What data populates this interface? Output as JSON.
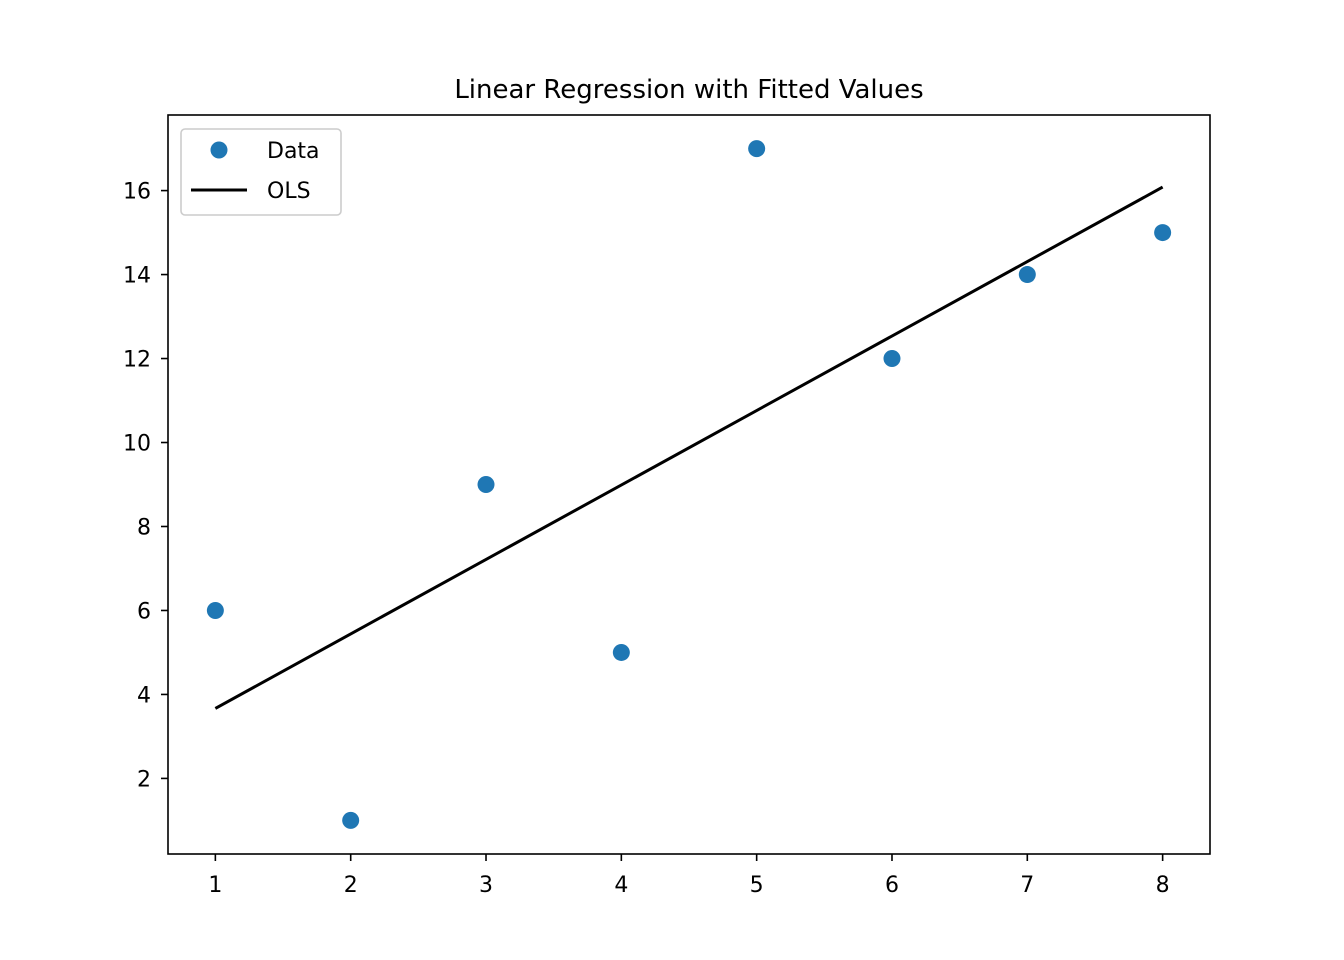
{
  "chart_data": {
    "type": "scatter",
    "title": "Linear Regression with Fitted Values",
    "xlabel": "",
    "ylabel": "",
    "xlim": [
      0.65,
      8.35
    ],
    "ylim": [
      0.2,
      17.8
    ],
    "xticks": [
      1,
      2,
      3,
      4,
      5,
      6,
      7,
      8
    ],
    "yticks": [
      2,
      4,
      6,
      8,
      10,
      12,
      14,
      16
    ],
    "grid": false,
    "legend": "upper left",
    "series": [
      {
        "name": "Data",
        "kind": "points",
        "color": "#1f77b4",
        "x": [
          1,
          2,
          3,
          4,
          5,
          6,
          7,
          8
        ],
        "y": [
          6,
          1,
          9,
          5,
          17,
          12,
          14,
          15
        ]
      },
      {
        "name": "OLS",
        "kind": "line",
        "color": "#000000",
        "x": [
          1,
          8
        ],
        "y": [
          3.667,
          16.083
        ]
      }
    ]
  }
}
